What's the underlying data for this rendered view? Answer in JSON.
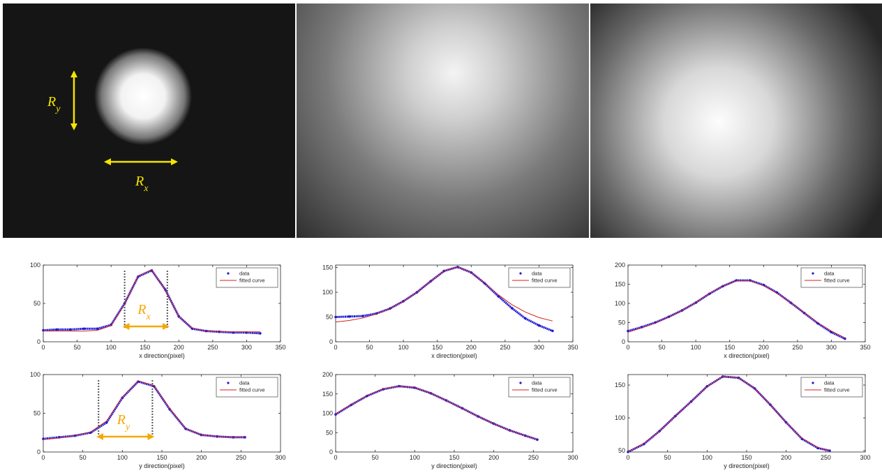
{
  "image_annotations": [
    {
      "base": "R",
      "sub": "y"
    },
    {
      "base": "R",
      "sub": "x"
    }
  ],
  "chart_data": [
    {
      "type": "line",
      "xlabel": "x direction(pixel)",
      "xlim": [
        0,
        350
      ],
      "xticks": [
        0,
        50,
        100,
        150,
        200,
        250,
        300,
        350
      ],
      "ylim": [
        0,
        100
      ],
      "yticks": [
        0,
        50,
        100
      ],
      "legend": "northeast",
      "annotation": {
        "base": "R",
        "sub": "x"
      },
      "x": [
        0,
        20,
        40,
        60,
        80,
        100,
        120,
        140,
        160,
        180,
        200,
        220,
        240,
        260,
        280,
        300,
        320
      ],
      "series": [
        {
          "name": "data",
          "color": "#1a1ad6",
          "marker": ".",
          "values": [
            15,
            16,
            16,
            17,
            17,
            22,
            50,
            85,
            93,
            68,
            33,
            17,
            14,
            13,
            12,
            12,
            11
          ]
        },
        {
          "name": "fitted curve",
          "color": "#d42020",
          "line": "-",
          "values": [
            14,
            14,
            14,
            14,
            15,
            21,
            49,
            86,
            94,
            67,
            33,
            18,
            14,
            13,
            13,
            13,
            13
          ]
        }
      ]
    },
    {
      "type": "line",
      "xlabel": "x direction(pixel)",
      "xlim": [
        0,
        350
      ],
      "xticks": [
        0,
        50,
        100,
        150,
        200,
        250,
        300,
        350
      ],
      "ylim": [
        0,
        155
      ],
      "yticks": [
        0,
        50,
        100,
        150
      ],
      "legend": "northeast",
      "x": [
        0,
        20,
        40,
        60,
        80,
        100,
        120,
        140,
        160,
        180,
        200,
        220,
        240,
        260,
        280,
        300,
        320
      ],
      "series": [
        {
          "name": "data",
          "color": "#1a1ad6",
          "marker": ".",
          "values": [
            50,
            51,
            52,
            57,
            67,
            82,
            100,
            122,
            143,
            151,
            140,
            118,
            92,
            68,
            47,
            33,
            22
          ]
        },
        {
          "name": "fitted curve",
          "color": "#d42020",
          "line": "-",
          "values": [
            40,
            43,
            48,
            56,
            67,
            82,
            100,
            122,
            143,
            151,
            140,
            119,
            95,
            75,
            60,
            49,
            42
          ]
        }
      ]
    },
    {
      "type": "line",
      "xlabel": "x direction(pixel)",
      "xlim": [
        0,
        350
      ],
      "xticks": [
        0,
        50,
        100,
        150,
        200,
        250,
        300,
        350
      ],
      "ylim": [
        0,
        200
      ],
      "yticks": [
        0,
        50,
        100,
        150,
        200
      ],
      "legend": "northeast",
      "x": [
        0,
        20,
        40,
        60,
        80,
        100,
        120,
        140,
        160,
        180,
        200,
        220,
        240,
        260,
        280,
        300,
        320
      ],
      "series": [
        {
          "name": "data",
          "color": "#1a1ad6",
          "marker": ".",
          "values": [
            28,
            38,
            50,
            65,
            82,
            102,
            125,
            145,
            160,
            160,
            148,
            128,
            102,
            75,
            48,
            25,
            8
          ]
        },
        {
          "name": "fitted curve",
          "color": "#d42020",
          "line": "-",
          "values": [
            25,
            36,
            49,
            64,
            82,
            103,
            126,
            146,
            159,
            159,
            146,
            126,
            102,
            76,
            50,
            28,
            10
          ]
        }
      ]
    },
    {
      "type": "line",
      "xlabel": "y direction(pixel)",
      "xlim": [
        0,
        300
      ],
      "xticks": [
        0,
        50,
        100,
        150,
        200,
        250,
        300
      ],
      "ylim": [
        0,
        100
      ],
      "yticks": [
        0,
        50,
        100
      ],
      "legend": "northeast",
      "annotation": {
        "base": "R",
        "sub": "y"
      },
      "x": [
        0,
        20,
        40,
        60,
        80,
        100,
        120,
        140,
        160,
        180,
        200,
        220,
        240,
        255
      ],
      "series": [
        {
          "name": "data",
          "color": "#1a1ad6",
          "marker": ".",
          "values": [
            17,
            19,
            21,
            25,
            38,
            70,
            91,
            85,
            55,
            30,
            22,
            20,
            19,
            19
          ]
        },
        {
          "name": "fitted curve",
          "color": "#d42020",
          "line": "-",
          "values": [
            16,
            18,
            21,
            26,
            40,
            71,
            92,
            86,
            56,
            30,
            22,
            20,
            19,
            19
          ]
        }
      ]
    },
    {
      "type": "line",
      "xlabel": "y direction(pixel)",
      "xlim": [
        0,
        300
      ],
      "xticks": [
        0,
        50,
        100,
        150,
        200,
        250,
        300
      ],
      "ylim": [
        0,
        200
      ],
      "yticks": [
        0,
        50,
        100,
        150,
        200
      ],
      "legend": "northeast",
      "x": [
        0,
        20,
        40,
        60,
        80,
        100,
        120,
        140,
        160,
        180,
        200,
        220,
        240,
        255
      ],
      "series": [
        {
          "name": "data",
          "color": "#1a1ad6",
          "marker": ".",
          "values": [
            97,
            122,
            145,
            162,
            170,
            166,
            152,
            133,
            113,
            92,
            73,
            56,
            42,
            32
          ]
        },
        {
          "name": "fitted curve",
          "color": "#d42020",
          "line": "-",
          "values": [
            98,
            123,
            146,
            163,
            170,
            166,
            152,
            133,
            112,
            92,
            73,
            56,
            42,
            33
          ]
        }
      ]
    },
    {
      "type": "line",
      "xlabel": "y direction(pixel)",
      "xlim": [
        0,
        300
      ],
      "xticks": [
        0,
        50,
        100,
        150,
        200,
        250,
        300
      ],
      "ylim": [
        48,
        166
      ],
      "yticks": [
        50,
        100,
        150
      ],
      "legend": "northeast",
      "x": [
        0,
        20,
        40,
        60,
        80,
        100,
        120,
        140,
        160,
        180,
        200,
        220,
        240,
        255
      ],
      "series": [
        {
          "name": "data",
          "color": "#1a1ad6",
          "marker": ".",
          "values": [
            48,
            60,
            80,
            103,
            125,
            148,
            163,
            161,
            145,
            120,
            93,
            68,
            54,
            50
          ]
        },
        {
          "name": "fitted curve",
          "color": "#d42020",
          "line": "-",
          "values": [
            49,
            61,
            80,
            103,
            125,
            147,
            163,
            161,
            145,
            120,
            93,
            69,
            55,
            50
          ]
        }
      ]
    }
  ]
}
